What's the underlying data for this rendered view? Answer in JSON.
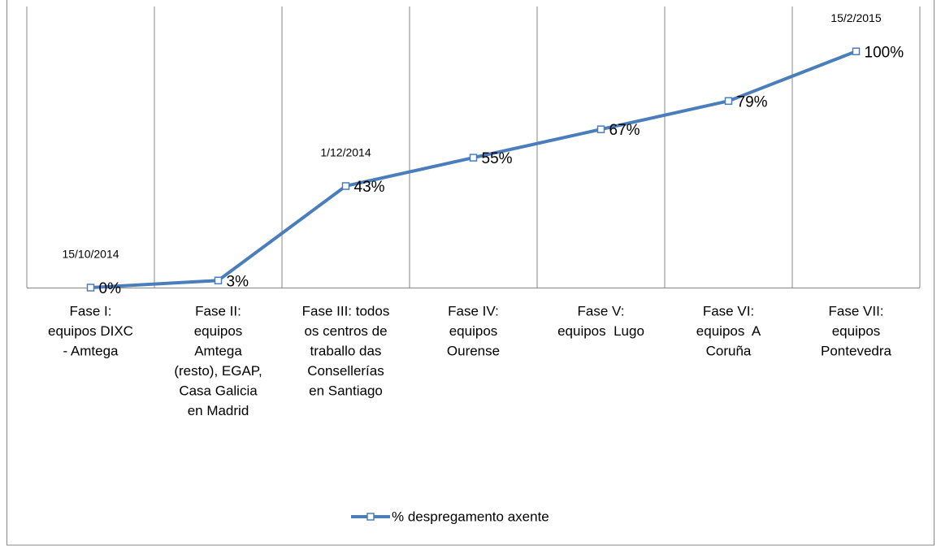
{
  "chart_data": {
    "type": "line",
    "categories": [
      [
        "Fase I:",
        "equipos DIXC",
        "- Amtega"
      ],
      [
        "Fase II:",
        "equipos",
        "Amtega",
        "(resto), EGAP,",
        "Casa Galicia",
        "en Madrid"
      ],
      [
        "Fase III: todos",
        "os centros de",
        "traballo das",
        "Consellerías",
        "en Santiago"
      ],
      [
        "Fase IV:",
        "equipos",
        "Ourense"
      ],
      [
        "Fase V:",
        "equipos  Lugo"
      ],
      [
        "Fase VI:",
        "equipos  A",
        "Coruña"
      ],
      [
        "Fase VII:",
        "equipos",
        "Pontevedra"
      ]
    ],
    "series": [
      {
        "name": "% despregamento axente",
        "color": "#4a7ebb",
        "values": [
          0,
          3,
          43,
          55,
          67,
          79,
          100
        ],
        "value_labels": [
          "0%",
          "3%",
          "43%",
          "55%",
          "67%",
          "79%",
          "100%"
        ],
        "point_labels": [
          "15/10/2014",
          null,
          "1/12/2014",
          null,
          null,
          null,
          "15/2/2015"
        ]
      }
    ],
    "ylim": [
      0,
      119
    ],
    "legend": "bottom"
  }
}
